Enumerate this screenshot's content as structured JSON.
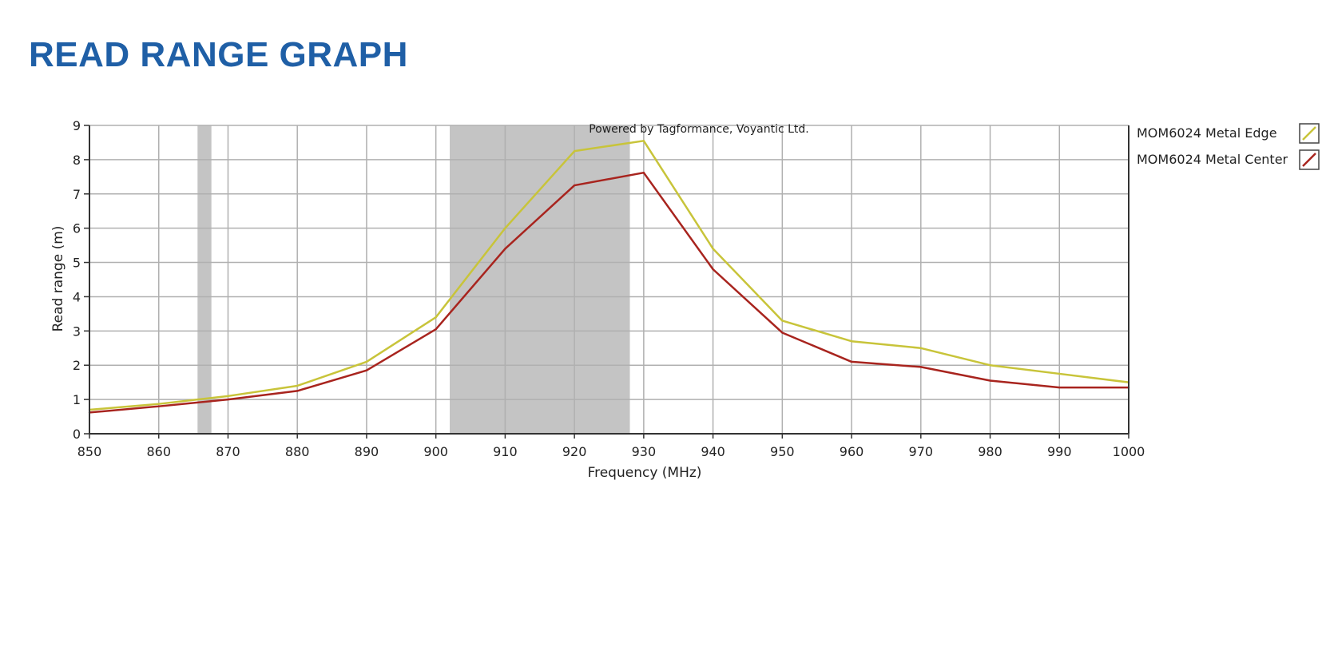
{
  "page": {
    "title": "READ RANGE GRAPH"
  },
  "colors": {
    "title": "#1f5fa6",
    "edge": "#c8c43a",
    "center": "#a8241e",
    "band": "#c4c4c4",
    "grid": "#b0b0b0"
  },
  "chart_data": {
    "type": "line",
    "title": "",
    "watermark": "Powered by Tagformance, Voyantic Ltd.",
    "xlabel": "Frequency (MHz)",
    "ylabel": "Read range (m)",
    "xlim": [
      850,
      1000
    ],
    "ylim": [
      0,
      9
    ],
    "xticks": [
      850,
      860,
      870,
      880,
      890,
      900,
      910,
      920,
      930,
      940,
      950,
      960,
      970,
      980,
      990,
      1000
    ],
    "yticks": [
      0,
      1,
      2,
      3,
      4,
      5,
      6,
      7,
      8,
      9
    ],
    "grid": true,
    "legend_position": "right",
    "shaded_bands": [
      [
        865.6,
        867.6
      ],
      [
        902,
        928
      ]
    ],
    "x": [
      850,
      860,
      870,
      880,
      890,
      900,
      910,
      920,
      930,
      940,
      950,
      960,
      970,
      980,
      990,
      1000
    ],
    "series": [
      {
        "name": "MOM6024 Metal Edge",
        "color": "#c8c43a",
        "values": [
          0.7,
          0.87,
          1.1,
          1.4,
          2.1,
          3.4,
          6.0,
          8.25,
          8.55,
          5.4,
          3.3,
          2.7,
          2.5,
          2.0,
          1.75,
          1.5
        ]
      },
      {
        "name": "MOM6024 Metal Center",
        "color": "#a8241e",
        "values": [
          0.62,
          0.8,
          1.0,
          1.25,
          1.85,
          3.05,
          5.4,
          7.25,
          7.62,
          4.8,
          2.95,
          2.1,
          1.95,
          1.55,
          1.35,
          1.35
        ]
      }
    ]
  }
}
